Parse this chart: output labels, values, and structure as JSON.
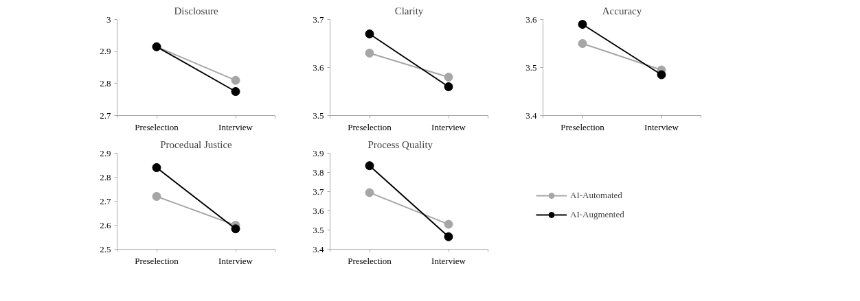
{
  "chart_data": [
    {
      "type": "line",
      "title": "Disclosure",
      "categories": [
        "Preselection",
        "Interview"
      ],
      "ylim": [
        2.7,
        3
      ],
      "yticks": [
        2.7,
        2.8,
        2.9,
        3
      ],
      "grid": false,
      "marker": "circle",
      "series": [
        {
          "color": "#a6a6a6",
          "values": [
            2.915,
            2.81
          ]
        },
        {
          "color": "#000000",
          "values": [
            2.915,
            2.775
          ]
        }
      ]
    },
    {
      "type": "line",
      "title": "Clarity",
      "categories": [
        "Preselection",
        "Interview"
      ],
      "ylim": [
        3.5,
        3.7
      ],
      "yticks": [
        3.5,
        3.6,
        3.7
      ],
      "grid": false,
      "marker": "circle",
      "series": [
        {
          "color": "#a6a6a6",
          "values": [
            3.63,
            3.58
          ]
        },
        {
          "color": "#000000",
          "values": [
            3.67,
            3.56
          ]
        }
      ]
    },
    {
      "type": "line",
      "title": "Accuracy",
      "categories": [
        "Preselection",
        "Interview"
      ],
      "ylim": [
        3.4,
        3.6
      ],
      "yticks": [
        3.4,
        3.5,
        3.6
      ],
      "grid": false,
      "marker": "circle",
      "series": [
        {
          "color": "#a6a6a6",
          "values": [
            3.55,
            3.495
          ]
        },
        {
          "color": "#000000",
          "values": [
            3.59,
            3.485
          ]
        }
      ]
    },
    {
      "type": "line",
      "title": "Procedual Justice",
      "categories": [
        "Preselection",
        "Interview"
      ],
      "ylim": [
        2.5,
        2.9
      ],
      "yticks": [
        2.5,
        2.6,
        2.7,
        2.8,
        2.9
      ],
      "grid": false,
      "marker": "circle",
      "series": [
        {
          "color": "#a6a6a6",
          "values": [
            2.72,
            2.6
          ]
        },
        {
          "color": "#000000",
          "values": [
            2.84,
            2.585
          ]
        }
      ]
    },
    {
      "type": "line",
      "title": "Process Quality",
      "categories": [
        "Preselection",
        "Interview"
      ],
      "ylim": [
        3.4,
        3.9
      ],
      "yticks": [
        3.4,
        3.5,
        3.6,
        3.7,
        3.8,
        3.9
      ],
      "grid": false,
      "marker": "circle",
      "legend": "right",
      "series": [
        {
          "name": "AI-Automated",
          "color": "#a6a6a6",
          "values": [
            3.695,
            3.53
          ]
        },
        {
          "name": "AI-Augmented",
          "color": "#000000",
          "values": [
            3.835,
            3.465
          ]
        }
      ]
    }
  ]
}
